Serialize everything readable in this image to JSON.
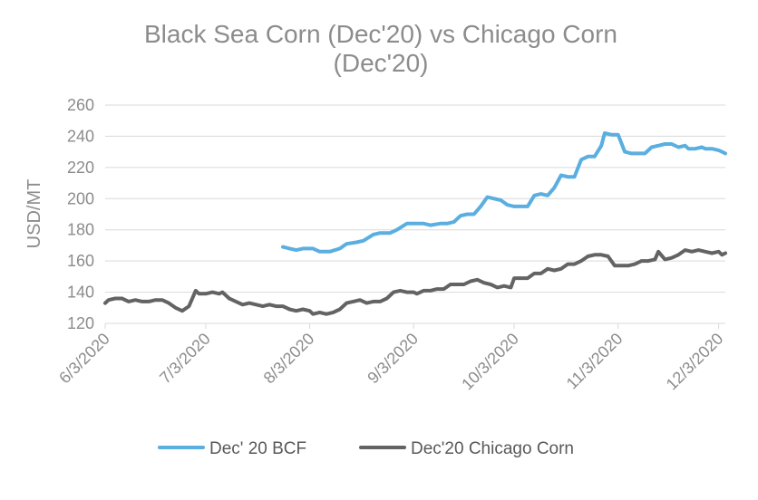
{
  "chart_data": {
    "type": "line",
    "title_line1": "Black Sea Corn (Dec'20) vs Chicago Corn",
    "title_line2": "(Dec'20)",
    "xlabel": "",
    "ylabel": "USD/MT",
    "ylim": [
      120,
      260
    ],
    "yticks": [
      120,
      140,
      160,
      180,
      200,
      220,
      240,
      260
    ],
    "xticks": [
      "6/3/2020",
      "7/3/2020",
      "8/3/2020",
      "9/3/2020",
      "10/3/2020",
      "11/3/2020",
      "12/3/2020"
    ],
    "x_unit": "days since 6/3/2020",
    "xlim": [
      0,
      185
    ],
    "xtick_days": [
      0,
      30,
      61,
      92,
      122,
      153,
      183
    ],
    "grid": "horizontal",
    "legend_position": "bottom",
    "series": [
      {
        "name": "Dec' 20 BCF",
        "color": "#5aaee0",
        "points": [
          [
            53,
            169
          ],
          [
            55,
            168
          ],
          [
            57,
            167
          ],
          [
            59,
            168
          ],
          [
            62,
            168
          ],
          [
            64,
            166
          ],
          [
            67,
            166
          ],
          [
            70,
            168
          ],
          [
            72,
            171
          ],
          [
            75,
            172
          ],
          [
            77,
            173
          ],
          [
            80,
            177
          ],
          [
            82,
            178
          ],
          [
            85,
            178
          ],
          [
            87,
            180
          ],
          [
            90,
            184
          ],
          [
            92,
            184
          ],
          [
            95,
            184
          ],
          [
            97,
            183
          ],
          [
            100,
            184
          ],
          [
            102,
            184
          ],
          [
            104,
            185
          ],
          [
            106,
            189
          ],
          [
            108,
            190
          ],
          [
            110,
            190
          ],
          [
            112,
            195
          ],
          [
            114,
            201
          ],
          [
            116,
            200
          ],
          [
            118,
            199
          ],
          [
            120,
            196
          ],
          [
            122,
            195
          ],
          [
            124,
            195
          ],
          [
            126,
            195
          ],
          [
            128,
            202
          ],
          [
            130,
            203
          ],
          [
            132,
            202
          ],
          [
            134,
            207
          ],
          [
            136,
            215
          ],
          [
            138,
            214
          ],
          [
            140,
            214
          ],
          [
            142,
            225
          ],
          [
            144,
            227
          ],
          [
            146,
            227
          ],
          [
            148,
            234
          ],
          [
            149,
            242
          ],
          [
            151,
            241
          ],
          [
            153,
            241
          ],
          [
            155,
            230
          ],
          [
            157,
            229
          ],
          [
            159,
            229
          ],
          [
            161,
            229
          ],
          [
            163,
            233
          ],
          [
            165,
            234
          ],
          [
            167,
            235
          ],
          [
            169,
            235
          ],
          [
            171,
            233
          ],
          [
            173,
            234
          ],
          [
            174,
            232
          ],
          [
            176,
            232
          ],
          [
            178,
            233
          ],
          [
            179,
            232
          ],
          [
            181,
            232
          ],
          [
            183,
            231
          ],
          [
            184,
            230
          ],
          [
            185,
            229
          ]
        ]
      },
      {
        "name": "Dec'20 Chicago Corn",
        "color": "#636363",
        "points": [
          [
            0,
            133
          ],
          [
            1,
            135
          ],
          [
            3,
            136
          ],
          [
            5,
            136
          ],
          [
            7,
            134
          ],
          [
            9,
            135
          ],
          [
            11,
            134
          ],
          [
            13,
            134
          ],
          [
            15,
            135
          ],
          [
            17,
            135
          ],
          [
            19,
            133
          ],
          [
            21,
            130
          ],
          [
            23,
            128
          ],
          [
            25,
            131
          ],
          [
            27,
            141
          ],
          [
            28,
            139
          ],
          [
            30,
            139
          ],
          [
            32,
            140
          ],
          [
            34,
            139
          ],
          [
            35,
            140
          ],
          [
            37,
            136
          ],
          [
            39,
            134
          ],
          [
            41,
            132
          ],
          [
            43,
            133
          ],
          [
            45,
            132
          ],
          [
            47,
            131
          ],
          [
            49,
            132
          ],
          [
            51,
            131
          ],
          [
            53,
            131
          ],
          [
            55,
            129
          ],
          [
            57,
            128
          ],
          [
            59,
            129
          ],
          [
            61,
            128
          ],
          [
            62,
            126
          ],
          [
            64,
            127
          ],
          [
            66,
            126
          ],
          [
            68,
            127
          ],
          [
            70,
            129
          ],
          [
            72,
            133
          ],
          [
            74,
            134
          ],
          [
            76,
            135
          ],
          [
            78,
            133
          ],
          [
            80,
            134
          ],
          [
            82,
            134
          ],
          [
            84,
            136
          ],
          [
            86,
            140
          ],
          [
            88,
            141
          ],
          [
            90,
            140
          ],
          [
            92,
            140
          ],
          [
            93,
            139
          ],
          [
            95,
            141
          ],
          [
            97,
            141
          ],
          [
            99,
            142
          ],
          [
            101,
            142
          ],
          [
            103,
            145
          ],
          [
            105,
            145
          ],
          [
            107,
            145
          ],
          [
            109,
            147
          ],
          [
            111,
            148
          ],
          [
            113,
            146
          ],
          [
            115,
            145
          ],
          [
            117,
            143
          ],
          [
            119,
            144
          ],
          [
            121,
            143
          ],
          [
            122,
            149
          ],
          [
            124,
            149
          ],
          [
            126,
            149
          ],
          [
            128,
            152
          ],
          [
            130,
            152
          ],
          [
            132,
            155
          ],
          [
            134,
            154
          ],
          [
            136,
            155
          ],
          [
            138,
            158
          ],
          [
            140,
            158
          ],
          [
            142,
            160
          ],
          [
            144,
            163
          ],
          [
            146,
            164
          ],
          [
            148,
            164
          ],
          [
            150,
            163
          ],
          [
            152,
            157
          ],
          [
            154,
            157
          ],
          [
            156,
            157
          ],
          [
            158,
            158
          ],
          [
            160,
            160
          ],
          [
            162,
            160
          ],
          [
            164,
            161
          ],
          [
            165,
            166
          ],
          [
            167,
            161
          ],
          [
            169,
            162
          ],
          [
            171,
            164
          ],
          [
            173,
            167
          ],
          [
            175,
            166
          ],
          [
            177,
            167
          ],
          [
            179,
            166
          ],
          [
            181,
            165
          ],
          [
            183,
            166
          ],
          [
            184,
            164
          ],
          [
            185,
            165
          ]
        ]
      }
    ]
  }
}
